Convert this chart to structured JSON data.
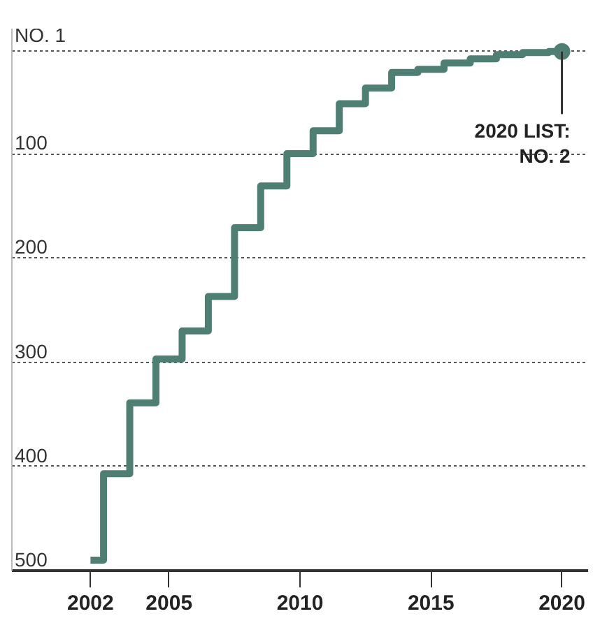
{
  "chart_data": {
    "type": "step",
    "x": [
      2002,
      2003,
      2004,
      2005,
      2006,
      2007,
      2008,
      2009,
      2010,
      2011,
      2012,
      2013,
      2014,
      2015,
      2016,
      2017,
      2018,
      2019,
      2020
    ],
    "series": [
      {
        "color": "#4f7f73",
        "values": [
          490,
          407,
          339,
          297,
          270,
          237,
          171,
          131,
          100,
          78,
          52,
          37,
          22,
          19,
          13,
          9,
          5,
          3,
          2
        ]
      }
    ],
    "xlim": [
      1999,
      2021
    ],
    "xticks": [
      2002,
      2005,
      2010,
      2015,
      2020
    ],
    "ylim": [
      500,
      -20
    ],
    "yticks": [
      {
        "value": 1,
        "label": "NO. 1"
      },
      100,
      200,
      300,
      400,
      500
    ],
    "grid": "y",
    "line_style": "solid",
    "annotations": [
      {
        "text": "2020 LIST:\nNO. 2",
        "x": 2020,
        "y": 2
      }
    ]
  }
}
